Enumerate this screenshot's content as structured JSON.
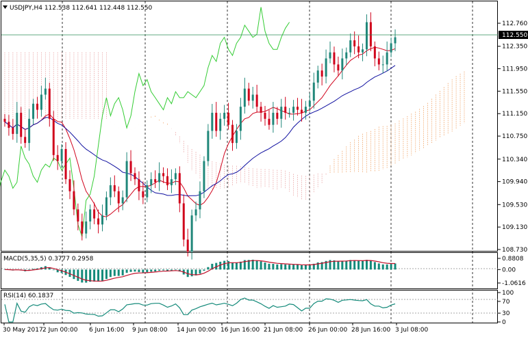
{
  "header": {
    "symbol_line": "USDJPY,H4  112.538 112.641 112.448 112.550",
    "dropdown_icon": "triangle-down-icon"
  },
  "main_panel": {
    "price_ticks": [
      "112.760",
      "112.350",
      "111.950",
      "111.550",
      "111.150",
      "110.750",
      "110.340",
      "109.940",
      "109.530",
      "109.130",
      "108.730"
    ],
    "current_price": "112.550"
  },
  "macd_panel": {
    "title": "MACD(5,35,5) 0.3777 0.2958",
    "ticks": [
      "0.8808",
      "0.00",
      "-1.0616"
    ]
  },
  "rsi_panel": {
    "title": "RSI(14) 60.1837",
    "ticks": [
      "100",
      "70",
      "30",
      "0"
    ]
  },
  "time_axis": {
    "labels": [
      "30 May 2017",
      "2 Jun 00:00",
      "6 Jun 16:00",
      "9 Jun 08:00",
      "14 Jun 00:00",
      "16 Jun 16:00",
      "21 Jun 08:00",
      "26 Jun 00:00",
      "28 Jun 16:00",
      "3 Jul 08:00"
    ]
  },
  "colors": {
    "bull": "#20877a",
    "bear": "#d0021b",
    "tenkan": "#d0021b",
    "kijun": "#1010a0",
    "chikou": "#33cc33",
    "cloud_bear": "#e8a0a0",
    "cloud_bull": "#f0a060",
    "macd_hist": "#148a7a",
    "macd_signal": "#c0102a",
    "rsi_line": "#148a7a",
    "current_line": "#2e8b57"
  },
  "chart_data": {
    "type": "candlestick",
    "symbol": "USDJPY",
    "timeframe": "H4",
    "ohlc_last": {
      "open": 112.538,
      "high": 112.641,
      "low": 112.448,
      "close": 112.55
    },
    "price_range": [
      108.73,
      112.76
    ],
    "close_series": [
      111.15,
      111.05,
      110.95,
      111.3,
      110.9,
      110.8,
      111.2,
      111.45,
      111.35,
      111.6,
      111.7,
      111.2,
      110.6,
      110.5,
      110.7,
      110.2,
      110.0,
      109.7,
      109.5,
      109.3,
      109.5,
      109.7,
      109.55,
      109.45,
      109.6,
      109.9,
      110.1,
      110.0,
      109.8,
      109.9,
      110.5,
      110.3,
      110.2,
      110.0,
      109.9,
      110.1,
      110.2,
      110.15,
      110.3,
      110.25,
      110.1,
      110.2,
      110.3,
      109.8,
      109.2,
      109.0,
      109.6,
      109.7,
      110.0,
      110.5,
      111.0,
      111.3,
      111.0,
      111.2,
      111.3,
      111.1,
      110.8,
      111.0,
      111.4,
      111.7,
      111.5,
      111.6,
      111.4,
      111.3,
      111.2,
      111.1,
      111.3,
      111.2,
      111.4,
      111.3,
      111.3,
      111.4,
      111.35,
      111.3,
      111.4,
      111.5,
      111.8,
      112.0,
      111.9,
      112.2,
      112.3,
      112.1,
      112.0,
      112.2,
      112.3,
      112.5,
      112.4,
      112.3,
      112.35,
      112.8,
      112.4,
      112.2,
      112.1,
      112.1,
      112.3,
      112.45,
      112.55
    ],
    "macd": {
      "main": 0.3777,
      "signal": 0.2958,
      "ticks": [
        0.8808,
        0.0,
        -1.0616
      ]
    },
    "rsi": {
      "value": 60.1837,
      "levels": [
        70,
        30
      ],
      "ticks": [
        100,
        70,
        30,
        0
      ]
    },
    "x_labels": [
      "30 May 2017",
      "2 Jun 00:00",
      "6 Jun 16:00",
      "9 Jun 08:00",
      "14 Jun 00:00",
      "16 Jun 16:00",
      "21 Jun 08:00",
      "26 Jun 00:00",
      "28 Jun 16:00",
      "3 Jul 08:00"
    ],
    "grid": true
  }
}
